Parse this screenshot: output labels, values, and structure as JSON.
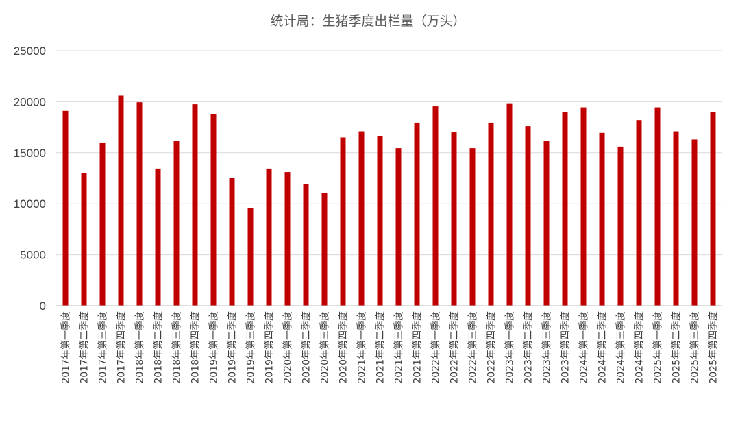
{
  "chart_data": {
    "type": "bar",
    "title": "统计局：生猪季度出栏量（万头）",
    "xlabel": "",
    "ylabel": "",
    "ylim": [
      0,
      25000
    ],
    "yticks": [
      0,
      5000,
      10000,
      15000,
      20000,
      25000
    ],
    "grid": true,
    "legend": "none",
    "bar_color": "#C00000",
    "categories": [
      "2017年第一季度",
      "2017年第二季度",
      "2017年第三季度",
      "2017年第四季度",
      "2018年第一季度",
      "2018年第二季度",
      "2018年第三季度",
      "2018年第四季度",
      "2019年第一季度",
      "2019年第二季度",
      "2019年第三季度",
      "2019年第四季度",
      "2020年第一季度",
      "2020年第二季度",
      "2020年第三季度",
      "2020年第四季度",
      "2021年第一季度",
      "2021年第二季度",
      "2021年第三季度",
      "2021年第四季度",
      "2022年第一季度",
      "2022年第二季度",
      "2022年第三季度",
      "2022年第四季度",
      "2023年第一季度",
      "2023年第二季度",
      "2023年第三季度",
      "2023年第四季度",
      "2024年第一季度",
      "2024年第二季度",
      "2024年第三季度",
      "2024年第四季度",
      "2025年第一季度",
      "2025年第二季度",
      "2025年第三季度",
      "2025年第四季度"
    ],
    "values": [
      19100,
      13000,
      16000,
      20600,
      19950,
      13450,
      16150,
      19750,
      18800,
      12500,
      9600,
      13450,
      13100,
      11900,
      11050,
      16500,
      17100,
      16600,
      15450,
      17950,
      19550,
      17000,
      15450,
      17950,
      19850,
      17600,
      16150,
      18950,
      19450,
      16950,
      15600,
      18200,
      19450,
      17100,
      16300,
      18950
    ]
  }
}
